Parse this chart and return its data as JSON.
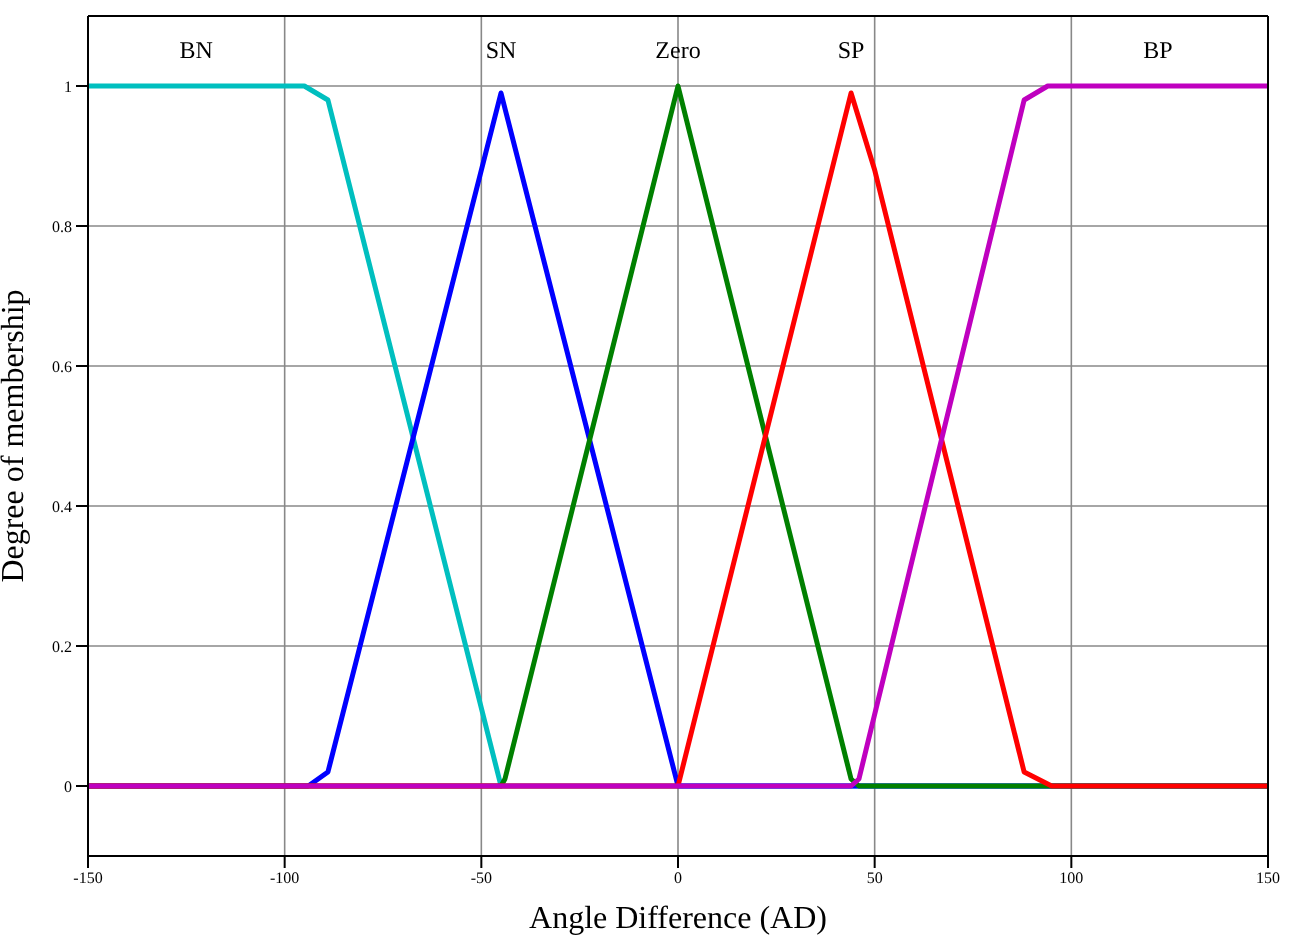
{
  "chart_data": {
    "type": "line",
    "xlabel": "Angle Difference (AD)",
    "ylabel": "Degree of membership",
    "xlim": [
      -150,
      150
    ],
    "ylim": [
      -0.1,
      1.1
    ],
    "xticks": [
      -150,
      -100,
      -50,
      0,
      50,
      100,
      150
    ],
    "yticks": [
      0,
      0.2,
      0.4,
      0.6,
      0.8,
      1
    ],
    "grid": true,
    "legend": false,
    "marker": "none",
    "line_style": "solid",
    "series": [
      {
        "name": "BN",
        "color": "#00bfbf",
        "x": [
          -150,
          -95,
          -89,
          -45,
          0,
          150
        ],
        "values": [
          1,
          1,
          0.98,
          0,
          0,
          0
        ]
      },
      {
        "name": "SN",
        "color": "#0000ff",
        "x": [
          -150,
          -94,
          -89,
          -45,
          0,
          150
        ],
        "values": [
          0,
          0,
          0.02,
          0.99,
          0,
          0
        ]
      },
      {
        "name": "Zero",
        "color": "#008000",
        "x": [
          -150,
          -45,
          -44,
          0,
          44,
          46,
          150
        ],
        "values": [
          0,
          0,
          0.01,
          1,
          0.01,
          0,
          0
        ]
      },
      {
        "name": "SP",
        "color": "#ff0000",
        "x": [
          -150,
          0,
          44,
          50,
          88,
          95,
          150
        ],
        "values": [
          0,
          0,
          0.99,
          0.88,
          0.02,
          0,
          0
        ]
      },
      {
        "name": "BP",
        "color": "#bf00bf",
        "x": [
          -150,
          44,
          46,
          88,
          94,
          150
        ],
        "values": [
          0,
          0,
          0.01,
          0.98,
          1,
          1
        ]
      }
    ]
  }
}
